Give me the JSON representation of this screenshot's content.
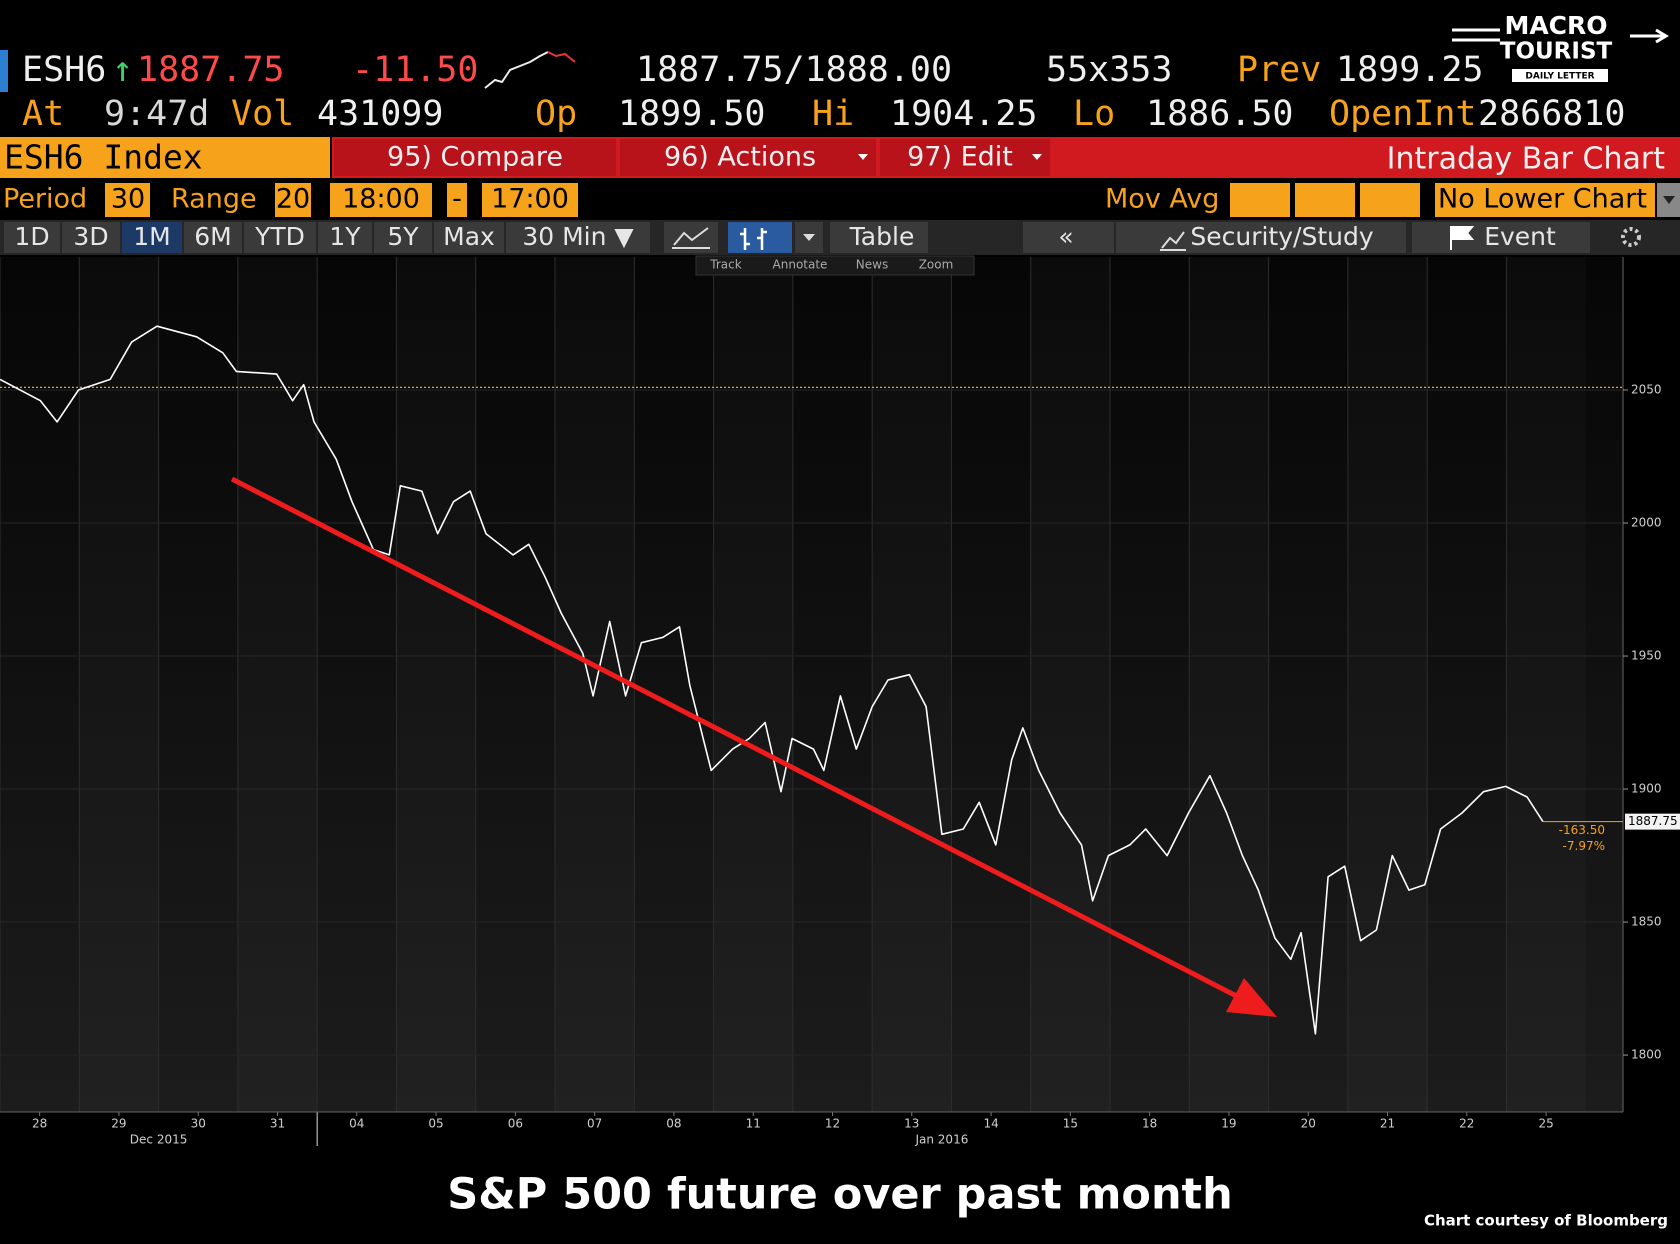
{
  "quote": {
    "ticker": "ESH6",
    "direction": "↑",
    "last": "1887.75",
    "change": "-11.50",
    "bid_ask": "1887.75/1888.00",
    "size": "55x353",
    "prev_label": "Prev",
    "prev": "1899.25",
    "time_label": "At",
    "time": "9:47d",
    "vol_label": "Vol",
    "vol": "431099",
    "open_label": "Op",
    "open": "1899.50",
    "high_label": "Hi",
    "high": "1904.25",
    "low_label": "Lo",
    "low": "1886.50",
    "oi_label": "OpenInt",
    "oi": "2866810"
  },
  "logo": {
    "line1": "MACRO",
    "line2": "TOURIST",
    "line3": "DAILY LETTER"
  },
  "toolbar": {
    "security": "ESH6 Index",
    "buttons": [
      "95) Compare",
      "96) Actions",
      "97) Edit"
    ],
    "view": "Intraday Bar Chart"
  },
  "settings": {
    "period_label": "Period",
    "period": "30",
    "range_label": "Range",
    "range": "20",
    "start": "18:00",
    "dash": "-",
    "end": "17:00",
    "mov_avg": "Mov Avg",
    "lower_chart": "No Lower Chart"
  },
  "tabs": [
    "1D",
    "3D",
    "1M",
    "6M",
    "YTD",
    "1Y",
    "5Y",
    "Max",
    "30 Min ▼"
  ],
  "active_tab": 2,
  "chart_tools": [
    "Table",
    "«",
    "Security/Study",
    "Event"
  ],
  "mini_toolbar": [
    "Track",
    "Annotate",
    "News",
    "Zoom"
  ],
  "chart_data": {
    "type": "line",
    "x": [
      0,
      0.51,
      0.72,
      0.99,
      1.39,
      1.66,
      1.98,
      2.48,
      2.81,
      2.98,
      3.49,
      3.69,
      3.83,
      3.96,
      4.24,
      4.44,
      4.71,
      4.91,
      5.05,
      5.32,
      5.52,
      5.72,
      5.93,
      6.13,
      6.47,
      6.67,
      6.87,
      7.08,
      7.35,
      7.48,
      7.69,
      7.89,
      8.09,
      8.36,
      8.57,
      8.7,
      8.97,
      9.24,
      9.45,
      9.65,
      9.85,
      9.99,
      10.26,
      10.39,
      10.6,
      10.8,
      11.0,
      11.2,
      11.47,
      11.68,
      11.88,
      12.15,
      12.35,
      12.56,
      12.76,
      12.9,
      13.1,
      13.37,
      13.64,
      13.78,
      13.98,
      14.25,
      14.45,
      14.72,
      14.99,
      15.26,
      15.47,
      15.67,
      15.87,
      16.08,
      16.28,
      16.41,
      16.59,
      16.75,
      16.96,
      17.16,
      17.36,
      17.56,
      17.77,
      17.97,
      18.17,
      18.44,
      18.71,
      18.99,
      19.26,
      19.46
    ],
    "series": [
      {
        "color": "#ffffff",
        "values": [
          2054,
          2046,
          2038,
          2050,
          2054,
          2068,
          2074,
          2070,
          2064,
          2057,
          2056,
          2046,
          2052,
          2038,
          2024,
          2008,
          1990,
          1988,
          2014,
          2012,
          1996,
          2008,
          2012,
          1996,
          1988,
          1992,
          1980,
          1966,
          1951,
          1935,
          1963,
          1935,
          1955,
          1957,
          1961,
          1939,
          1907,
          1915,
          1919,
          1925,
          1899,
          1919,
          1915,
          1907,
          1935,
          1915,
          1931,
          1941,
          1943,
          1931,
          1883,
          1885,
          1895,
          1879,
          1911,
          1923,
          1907,
          1891,
          1879,
          1858,
          1875,
          1879,
          1885,
          1875,
          1891,
          1905,
          1891,
          1875,
          1862,
          1844,
          1836,
          1846,
          1808,
          1867,
          1871,
          1843,
          1847,
          1875,
          1862,
          1864,
          1885,
          1891,
          1899,
          1901,
          1897,
          1887.75
        ]
      }
    ],
    "xlim": [
      0,
      20.47
    ],
    "xticks": [
      {
        "value": 0.5,
        "label": "28"
      },
      {
        "value": 1.5,
        "label": "29"
      },
      {
        "value": 2.5,
        "label": "30"
      },
      {
        "value": 3.5,
        "label": "31"
      },
      {
        "value": 4.5,
        "label": "04"
      },
      {
        "value": 5.5,
        "label": "05"
      },
      {
        "value": 6.5,
        "label": "06"
      },
      {
        "value": 7.5,
        "label": "07"
      },
      {
        "value": 8.5,
        "label": "08"
      },
      {
        "value": 9.5,
        "label": "11"
      },
      {
        "value": 10.5,
        "label": "12"
      },
      {
        "value": 11.5,
        "label": "13"
      },
      {
        "value": 12.5,
        "label": "14"
      },
      {
        "value": 13.5,
        "label": "15"
      },
      {
        "value": 14.5,
        "label": "18"
      },
      {
        "value": 15.5,
        "label": "19"
      },
      {
        "value": 16.5,
        "label": "20"
      },
      {
        "value": 17.5,
        "label": "21"
      },
      {
        "value": 18.5,
        "label": "22"
      },
      {
        "value": 19.5,
        "label": "25"
      }
    ],
    "month_labels": [
      {
        "value": 2,
        "label": "Dec 2015"
      },
      {
        "value": 11.88,
        "label": "Jan 2016"
      }
    ],
    "month_divider": 4,
    "ylim": [
      1778.6,
      2100
    ],
    "yticks": [
      1800,
      1850,
      1900,
      1950,
      2000,
      2050
    ],
    "reference_line": 2051,
    "reference_color": "#f7a21b",
    "annotations": [
      "-163.50",
      "-7.97%"
    ],
    "grid": true
  },
  "caption": "S&P 500 future over past month",
  "credit": "Chart courtesy of Bloomberg"
}
